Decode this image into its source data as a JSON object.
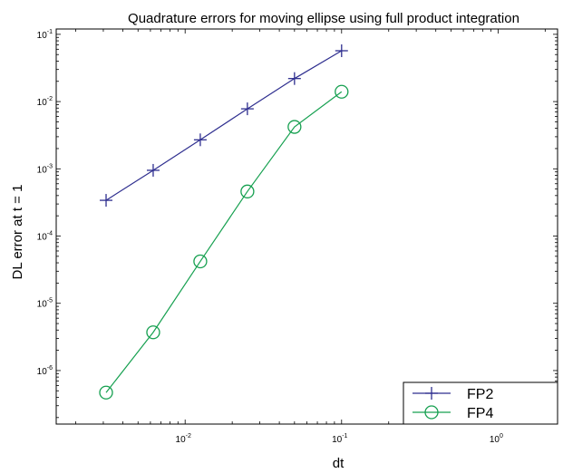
{
  "chart_data": {
    "type": "line",
    "title": "Quadrature errors for moving ellipse using full product integration",
    "xlabel": "dt",
    "ylabel": "DL error at t = 1",
    "xscale": "log",
    "yscale": "log",
    "xlim": [
      0.0015,
      2.4
    ],
    "ylim": [
      1.6e-07,
      0.12
    ],
    "x_ticks": [
      {
        "base": "10",
        "exp": "-2",
        "value": 0.01
      },
      {
        "base": "10",
        "exp": "-1",
        "value": 0.1
      },
      {
        "base": "10",
        "exp": "0",
        "value": 1
      }
    ],
    "y_ticks": [
      {
        "base": "10",
        "exp": "-6",
        "value": 1e-06
      },
      {
        "base": "10",
        "exp": "-5",
        "value": 1e-05
      },
      {
        "base": "10",
        "exp": "-4",
        "value": 0.0001
      },
      {
        "base": "10",
        "exp": "-3",
        "value": 0.001
      },
      {
        "base": "10",
        "exp": "-2",
        "value": 0.01
      },
      {
        "base": "10",
        "exp": "-1",
        "value": 0.1
      }
    ],
    "grid": false,
    "legend_position": "bottom-right",
    "series": [
      {
        "name": "FP2",
        "color": "#2e2e8f",
        "marker": "plus",
        "x": [
          0.003125,
          0.00625,
          0.0125,
          0.025,
          0.05,
          0.1
        ],
        "y": [
          0.00034,
          0.00095,
          0.0027,
          0.0078,
          0.022,
          0.057
        ]
      },
      {
        "name": "FP4",
        "color": "#16a050",
        "marker": "circle",
        "x": [
          0.003125,
          0.00625,
          0.0125,
          0.025,
          0.05,
          0.1
        ],
        "y": [
          4.7e-07,
          3.7e-06,
          4.2e-05,
          0.00046,
          0.0042,
          0.014
        ]
      }
    ]
  }
}
